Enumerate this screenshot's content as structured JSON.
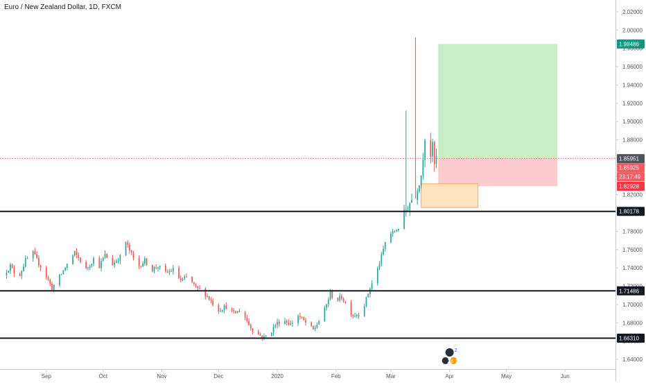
{
  "header": {
    "title": "Euro / New Zealand Dollar, 1D, FXCM"
  },
  "chart_data": {
    "type": "candlestick",
    "title": "Euro / New Zealand Dollar, 1D, FXCM",
    "ylim": [
      1.63,
      2.03
    ],
    "y_ticks": [
      "1.64000",
      "1.66000",
      "1.68000",
      "1.70000",
      "1.72000",
      "1.74000",
      "1.76000",
      "1.78000",
      "1.80000",
      "1.82000",
      "1.84000",
      "1.86000",
      "1.88000",
      "1.90000",
      "1.92000",
      "1.94000",
      "1.96000",
      "1.98000",
      "2.00000",
      "2.02000"
    ],
    "x_ticks": [
      {
        "label": "Sep",
        "day": 49
      },
      {
        "label": "Oct",
        "day": 79
      },
      {
        "label": "Nov",
        "day": 110
      },
      {
        "label": "Dec",
        "day": 140
      },
      {
        "label": "2020",
        "day": 171
      },
      {
        "label": "Feb",
        "day": 202
      },
      {
        "label": "Mar",
        "day": 231
      },
      {
        "label": "Apr",
        "day": 262
      },
      {
        "label": "May",
        "day": 292
      },
      {
        "label": "Jun",
        "day": 323
      }
    ],
    "x_domain_days": [
      26,
      335
    ],
    "ohlc_path": [
      [
        26,
        1.732
      ],
      [
        30,
        1.742
      ],
      [
        34,
        1.728
      ],
      [
        38,
        1.748
      ],
      [
        42,
        1.756
      ],
      [
        45,
        1.745
      ],
      [
        48,
        1.735
      ],
      [
        52,
        1.718
      ],
      [
        56,
        1.73
      ],
      [
        60,
        1.744
      ],
      [
        64,
        1.756
      ],
      [
        67,
        1.748
      ],
      [
        70,
        1.738
      ],
      [
        74,
        1.75
      ],
      [
        77,
        1.742
      ],
      [
        80,
        1.754
      ],
      [
        84,
        1.744
      ],
      [
        88,
        1.752
      ],
      [
        91,
        1.768
      ],
      [
        95,
        1.75
      ],
      [
        98,
        1.742
      ],
      [
        101,
        1.748
      ],
      [
        105,
        1.738
      ],
      [
        108,
        1.742
      ],
      [
        112,
        1.734
      ],
      [
        116,
        1.738
      ],
      [
        120,
        1.726
      ],
      [
        124,
        1.73
      ],
      [
        128,
        1.718
      ],
      [
        132,
        1.714
      ],
      [
        136,
        1.704
      ],
      [
        140,
        1.694
      ],
      [
        144,
        1.698
      ],
      [
        148,
        1.69
      ],
      [
        152,
        1.694
      ],
      [
        156,
        1.678
      ],
      [
        160,
        1.668
      ],
      [
        164,
        1.664
      ],
      [
        167,
        1.668
      ],
      [
        170,
        1.678
      ],
      [
        174,
        1.684
      ],
      [
        178,
        1.678
      ],
      [
        182,
        1.688
      ],
      [
        186,
        1.68
      ],
      [
        190,
        1.672
      ],
      [
        193,
        1.682
      ],
      [
        196,
        1.694
      ],
      [
        199,
        1.712
      ],
      [
        202,
        1.704
      ],
      [
        205,
        1.708
      ],
      [
        208,
        1.698
      ],
      [
        211,
        1.688
      ],
      [
        214,
        1.69
      ],
      [
        217,
        1.7
      ],
      [
        220,
        1.718
      ],
      [
        223,
        1.732
      ],
      [
        226,
        1.752
      ],
      [
        229,
        1.776
      ],
      [
        232,
        1.778
      ],
      [
        235,
        1.784
      ],
      [
        238,
        1.798
      ],
      [
        241,
        1.812
      ],
      [
        244,
        1.822
      ],
      [
        247,
        1.842
      ],
      [
        249,
        1.884
      ],
      [
        250,
        1.898
      ],
      [
        251,
        1.884
      ],
      [
        252,
        1.864
      ],
      [
        253,
        1.872
      ],
      [
        254,
        1.852
      ],
      [
        255,
        1.86
      ]
    ],
    "big_wicks": [
      {
        "day": 239,
        "high": 1.912,
        "low": 1.796
      },
      {
        "day": 244,
        "high": 1.992,
        "low": 1.816
      }
    ],
    "horizontal_levels": [
      {
        "value": 1.80178,
        "label": "1.80178",
        "color": "#131722"
      },
      {
        "value": 1.71486,
        "label": "1.71486",
        "color": "#131722"
      },
      {
        "value": 1.6631,
        "label": "1.66310",
        "color": "#131722"
      }
    ],
    "current_price": {
      "value": 1.85951,
      "label": "1.85951",
      "color": "#f23645"
    },
    "position": {
      "start_day": 256,
      "end_day": 319,
      "entry": 1.85951,
      "target": 1.98486,
      "stop": 1.82928,
      "target_label": "1.98486",
      "stop_label": "1.82928",
      "profit_color": "#b6e8b5",
      "loss_color": "#f9b9bf"
    },
    "zone": {
      "start_day": 247,
      "end_day": 277,
      "top": 1.832,
      "bottom": 1.806,
      "color": "#fde2b8",
      "border": "#f6a544"
    },
    "side_labels": [
      {
        "value": 1.85925,
        "label": "1.85925",
        "bg": "#f25a64"
      },
      {
        "value": 1.8505,
        "label": "23:17:49",
        "bg": "#f25a64"
      }
    ],
    "colors": {
      "up": "#26a69a",
      "down": "#ef5350",
      "axis_text": "#50535e",
      "axis_line": "#c8c9cf"
    },
    "events_badge": {
      "day": 262,
      "icon": "economic-events-icon",
      "counts": [
        "2",
        "2",
        "6",
        "1"
      ]
    }
  }
}
